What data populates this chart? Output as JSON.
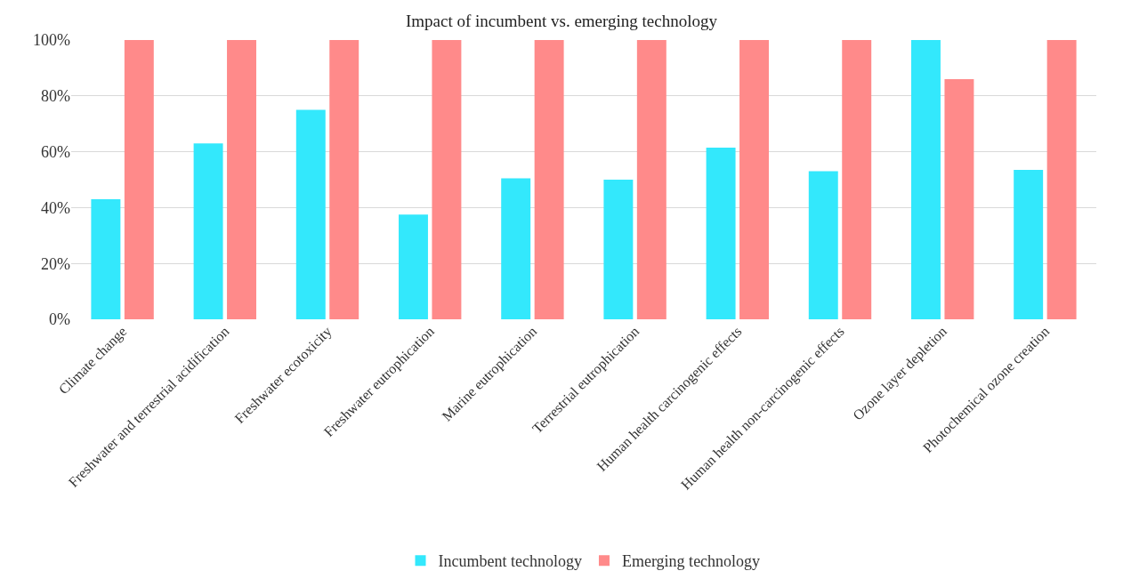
{
  "chart_data": {
    "type": "bar",
    "title": "Impact of incumbent vs. emerging technology",
    "categories": [
      "Climate change",
      "Freshwater and terrestrial acidification",
      "Freshwater ecotoxicity",
      "Freshwater eutrophication",
      "Marine eutrophication",
      "Terrestrial eutrophication",
      "Human health carcinogenic effects",
      "Human health non-carcinogenic effects",
      "Ozone layer depletion",
      "Photochemical ozone creation"
    ],
    "series": [
      {
        "name": "Incumbent technology",
        "color": "#33e8fc",
        "values": [
          43,
          63,
          75,
          37.5,
          50.5,
          50,
          61.5,
          53,
          100,
          53.5
        ]
      },
      {
        "name": "Emerging technology",
        "color": "#ff8a8a",
        "values": [
          100,
          100,
          100,
          100,
          100,
          100,
          100,
          100,
          86,
          100
        ]
      }
    ],
    "ylim": [
      0,
      100
    ],
    "yticks": [
      {
        "value": 0,
        "label": "0%"
      },
      {
        "value": 20,
        "label": "20%"
      },
      {
        "value": 40,
        "label": "40%"
      },
      {
        "value": 60,
        "label": "60%"
      },
      {
        "value": 80,
        "label": "80%"
      },
      {
        "value": 100,
        "label": "100%"
      }
    ],
    "grid": "y",
    "legend": "bottom"
  }
}
